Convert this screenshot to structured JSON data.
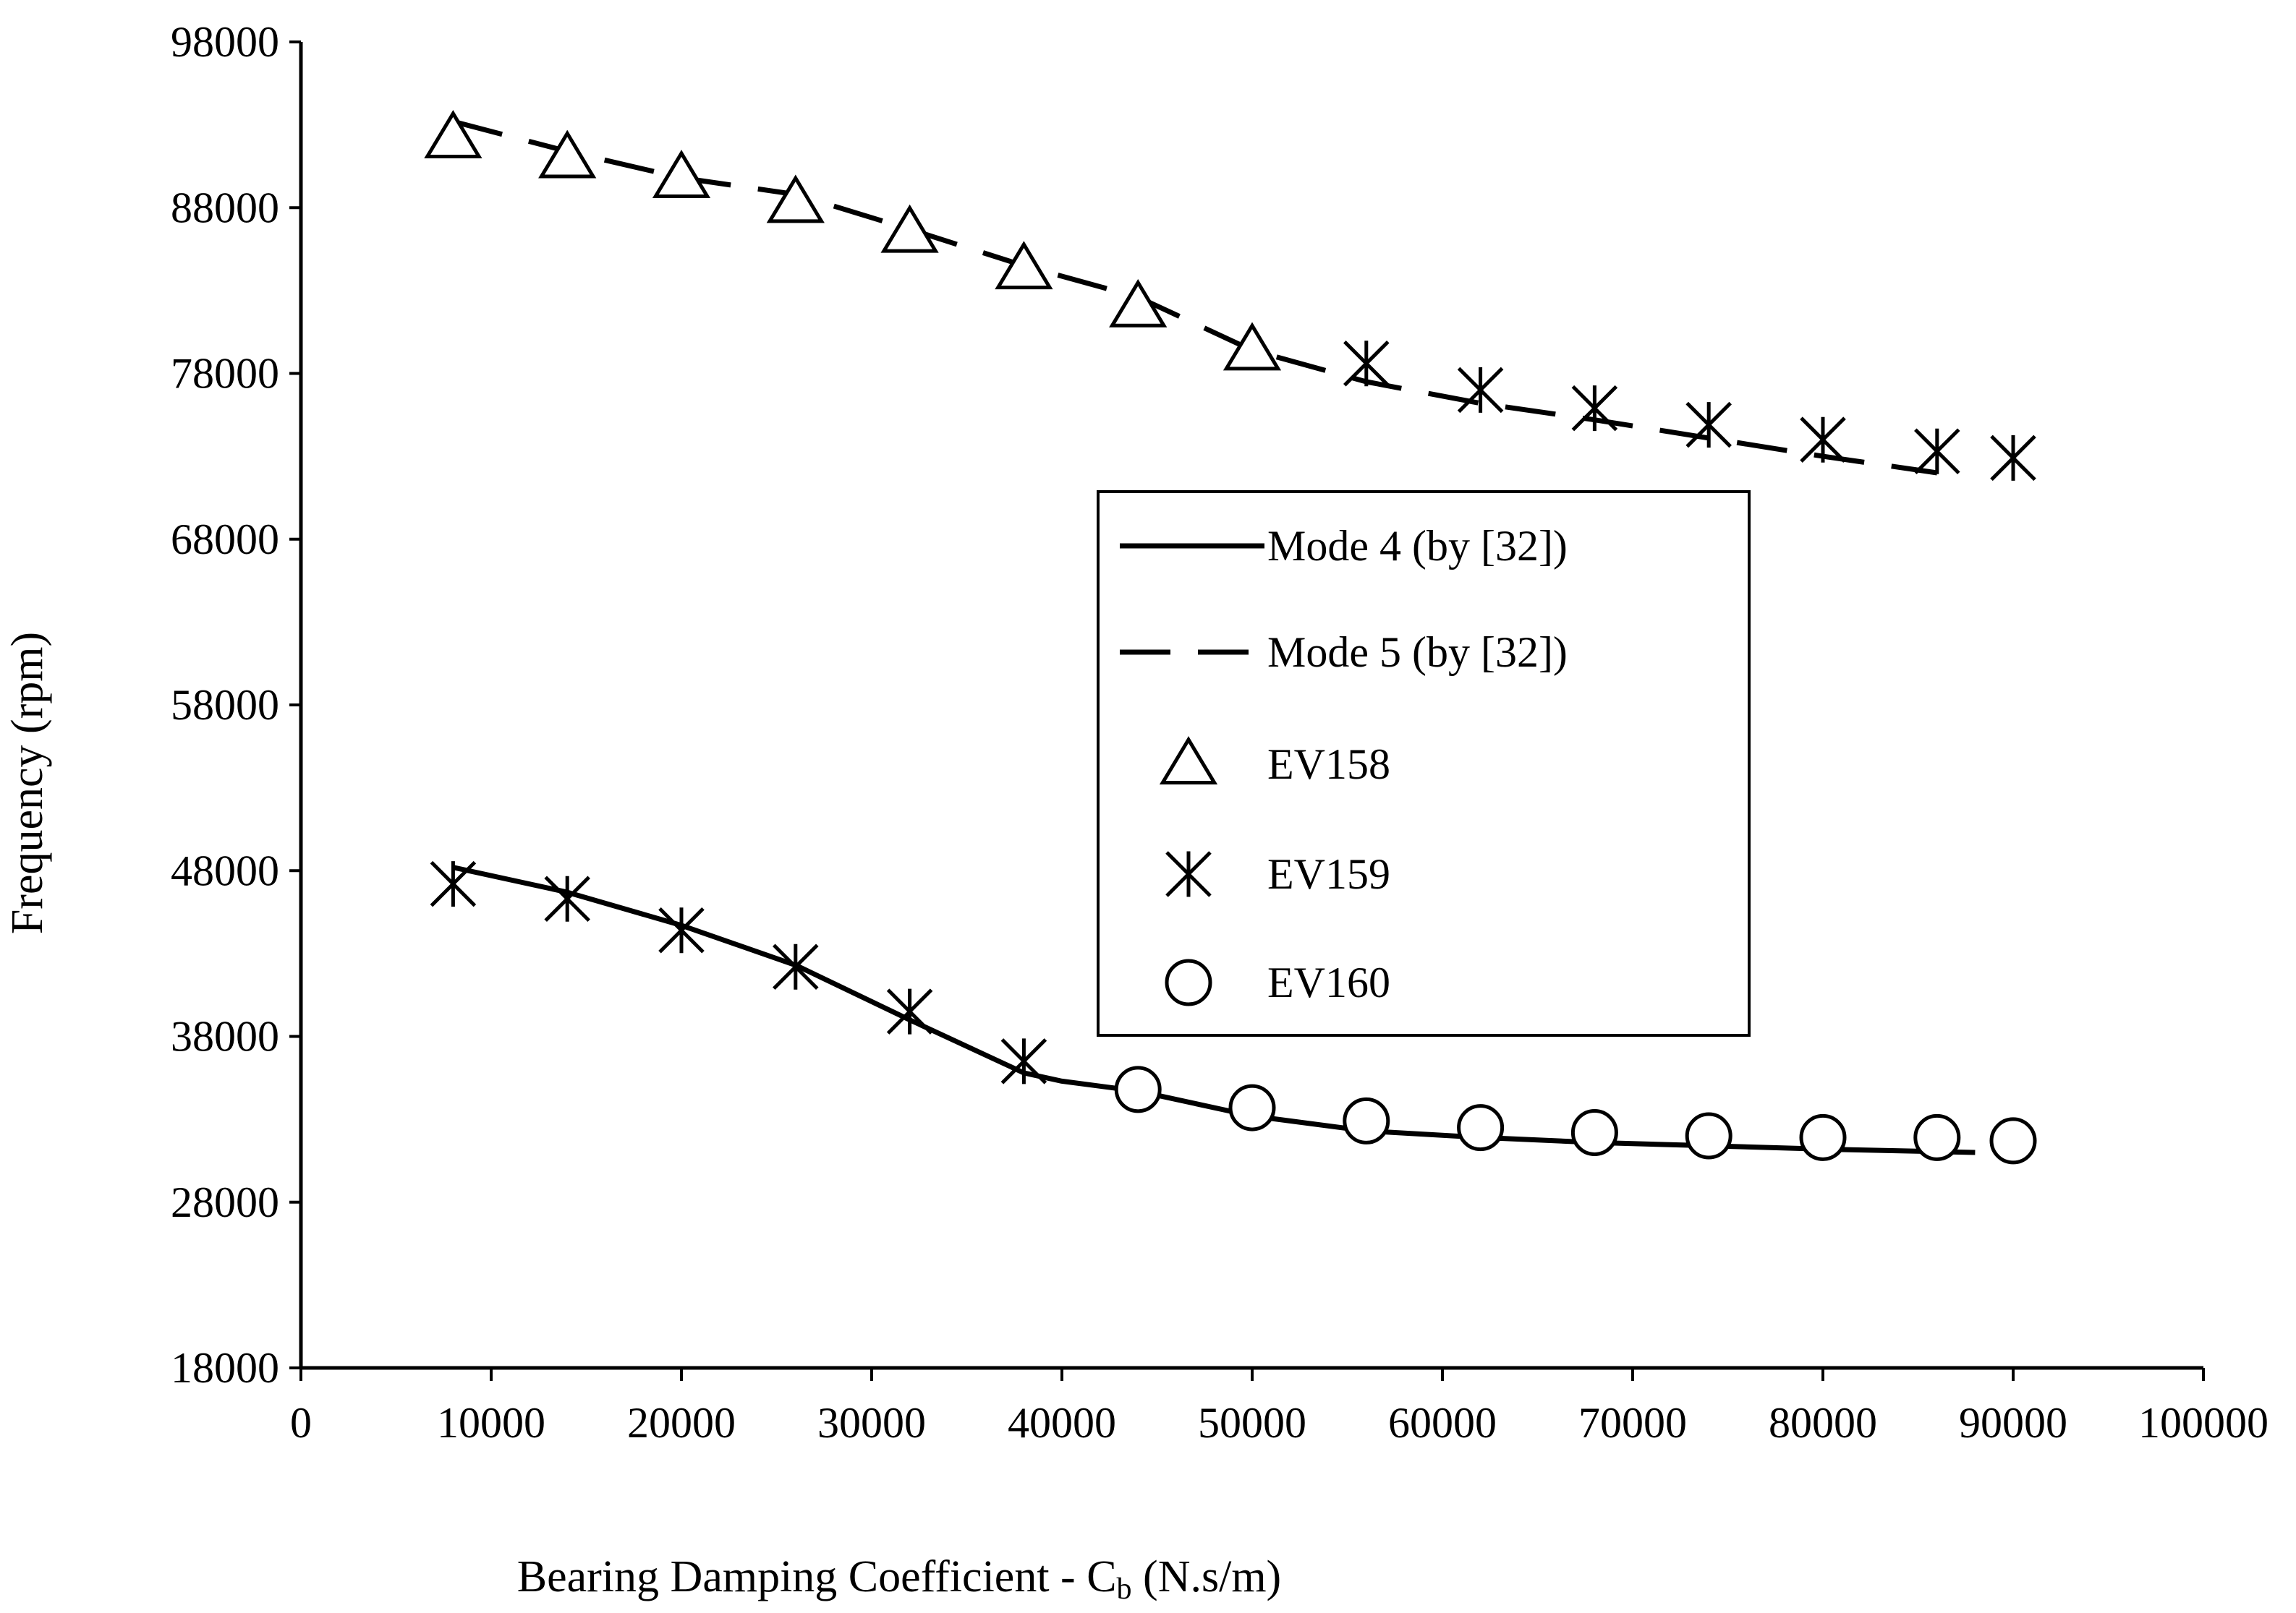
{
  "chart_data": {
    "type": "line",
    "xlabel_main": "Bearing Damping Coefficient - C",
    "xlabel_sub": "b",
    "xlabel_unit": " (N.s/m)",
    "ylabel": "Frequency (rpm)",
    "xlim": [
      0,
      100000
    ],
    "ylim": [
      18000,
      98000
    ],
    "x_ticks": [
      0,
      10000,
      20000,
      30000,
      40000,
      50000,
      60000,
      70000,
      80000,
      90000,
      100000
    ],
    "y_ticks": [
      18000,
      28000,
      38000,
      48000,
      58000,
      68000,
      78000,
      88000,
      98000
    ],
    "x_tick_labels": [
      "0",
      "10000",
      "20000",
      "30000",
      "40000",
      "50000",
      "60000",
      "70000",
      "80000",
      "90000",
      "100000"
    ],
    "y_tick_labels": [
      "18000",
      "28000",
      "38000",
      "48000",
      "58000",
      "68000",
      "78000",
      "88000",
      "98000"
    ],
    "grid": false,
    "legend_position": "center-right",
    "color": "#000000",
    "series": [
      {
        "name": "Mode 4 (by [32])",
        "style": "solid-line",
        "x": [
          8000,
          14000,
          20000,
          26000,
          32000,
          38000,
          40000,
          44000,
          50000,
          56000,
          62000,
          68000,
          74000,
          80000,
          88000
        ],
        "y": [
          48200,
          46700,
          44700,
          42300,
          39000,
          35800,
          35300,
          34700,
          33200,
          32300,
          31900,
          31600,
          31400,
          31200,
          31000
        ]
      },
      {
        "name": "Mode 5 (by [32])",
        "style": "dashed-line",
        "x": [
          8000,
          14000,
          20000,
          26000,
          32000,
          38000,
          44000,
          50000,
          56000,
          62000,
          68000,
          74000,
          80000,
          86000
        ],
        "y": [
          93200,
          91400,
          89800,
          88800,
          86700,
          84500,
          82600,
          79400,
          77500,
          76200,
          75200,
          74100,
          73000,
          72000
        ]
      },
      {
        "name": "EV158",
        "style": "triangle-marker",
        "x": [
          8000,
          14000,
          20000,
          26000,
          32000,
          38000,
          44000,
          50000
        ],
        "y": [
          92200,
          91000,
          89800,
          88300,
          86500,
          84300,
          82000,
          79400
        ]
      },
      {
        "name": "EV159",
        "style": "star-marker",
        "x": [
          8000,
          14000,
          20000,
          26000,
          32000,
          38000,
          56000,
          62000,
          68000,
          74000,
          80000,
          86000,
          90000
        ],
        "y": [
          47200,
          46300,
          44400,
          42200,
          39500,
          36500,
          78600,
          77000,
          75900,
          74900,
          74000,
          73300,
          72900
        ]
      },
      {
        "name": "EV160",
        "style": "circle-marker",
        "x": [
          44000,
          50000,
          56000,
          62000,
          68000,
          74000,
          80000,
          86000,
          90000
        ],
        "y": [
          34800,
          33700,
          32900,
          32500,
          32200,
          32000,
          31900,
          31900,
          31700
        ]
      }
    ]
  }
}
